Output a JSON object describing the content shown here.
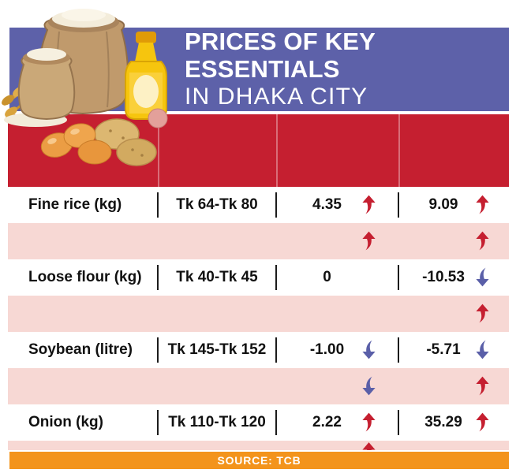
{
  "header": {
    "title_line1": "PRICES OF KEY ESSENTIALS",
    "title_line2": "IN DHAKA CITY"
  },
  "footer": {
    "source_label": "SOURCE: TCB"
  },
  "colors": {
    "banner_purple": "#5d61a9",
    "table_red": "#c51f30",
    "row_pink": "#f7d8d4",
    "footer_orange": "#f3941c",
    "arrow_up": "#c51f30",
    "arrow_down": "#5a5fa8"
  },
  "chart_data": {
    "type": "table",
    "title": "Prices of key essentials in Dhaka City",
    "source": "TCB",
    "rows": [
      {
        "item": "Fine rice (kg)",
        "price_range": "Tk 64-Tk 80",
        "change_1": "4.35",
        "change_1_direction": "up",
        "change_2": "9.09",
        "change_2_direction": "up"
      },
      {
        "item": "Loose flour (kg)",
        "price_range": "Tk 40-Tk 45",
        "change_1": "0",
        "change_1_direction": "",
        "change_2": "-10.53",
        "change_2_direction": "down"
      },
      {
        "item": "Soybean (litre)",
        "price_range": "Tk 145-Tk 152",
        "change_1": "-1.00",
        "change_1_direction": "down",
        "change_2": "-5.71",
        "change_2_direction": "down"
      },
      {
        "item": "Onion (kg)",
        "price_range": "Tk 110-Tk 120",
        "change_1": "2.22",
        "change_1_direction": "up",
        "change_2": "35.29",
        "change_2_direction": "up"
      }
    ],
    "spacer_rows": [
      {
        "change_1_direction": "up",
        "change_2_direction": "up"
      },
      {
        "change_1_direction": "",
        "change_2_direction": "up"
      },
      {
        "change_1_direction": "down",
        "change_2_direction": "up"
      },
      {
        "change_1_direction": "up",
        "change_2_direction": ""
      }
    ]
  }
}
